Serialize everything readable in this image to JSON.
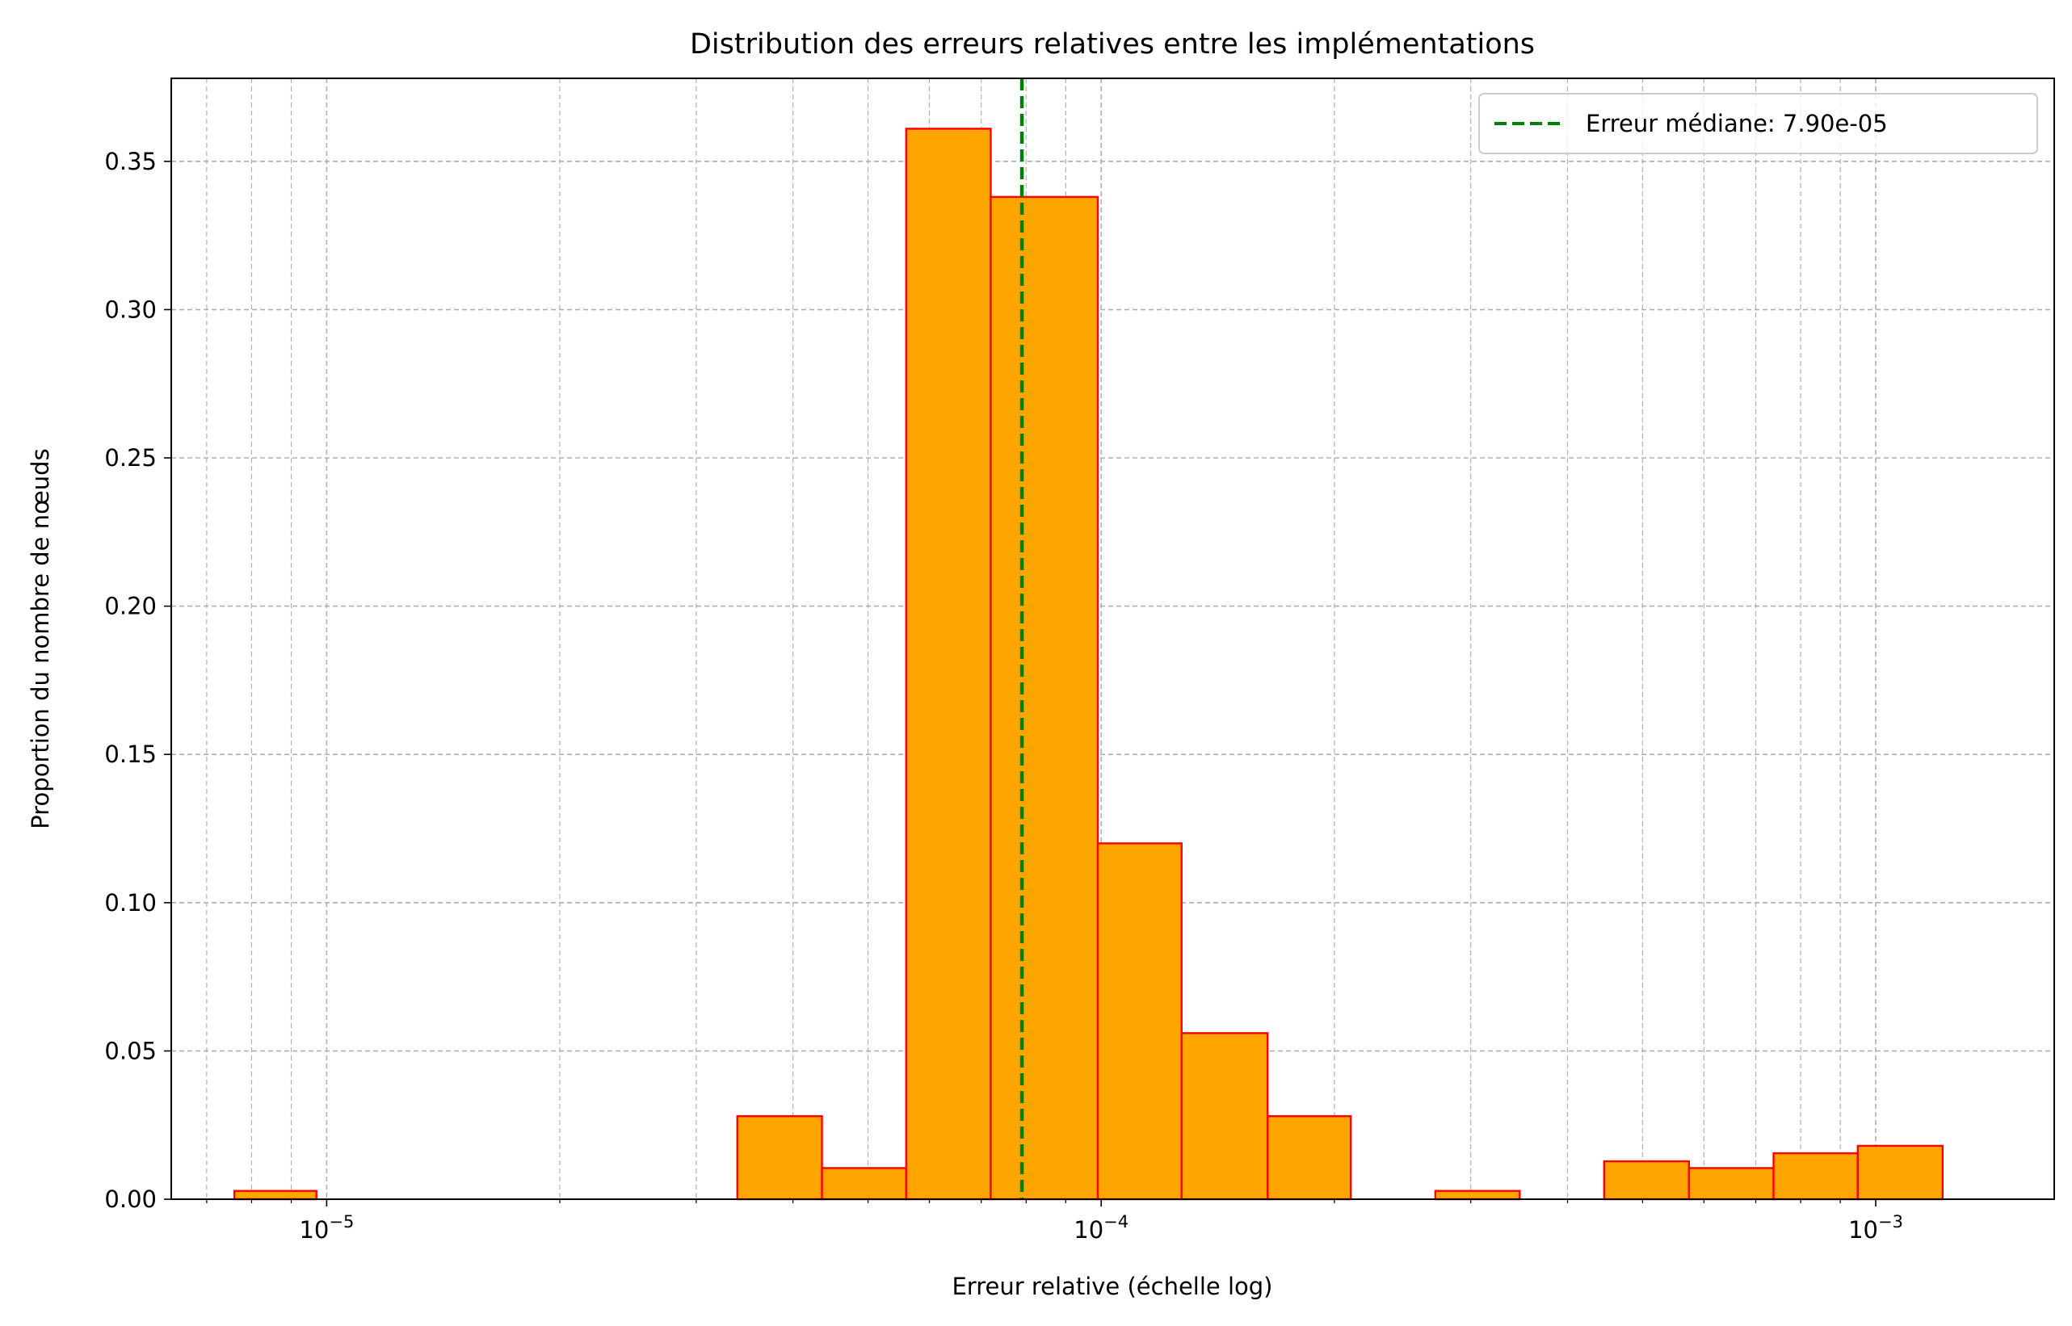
{
  "chart_data": {
    "type": "bar",
    "title": "Distribution des erreurs relatives entre les implémentations",
    "xlabel": "Erreur relative (échelle log)",
    "ylabel": "Proportion du nombre de nœuds",
    "x_scale": "log",
    "xlim": [
      6.3e-06,
      0.0017
    ],
    "ylim": [
      0,
      0.378
    ],
    "grid": true,
    "grid_minor_x": true,
    "legend_position": "top-right",
    "colors": {
      "bar_fill": "#FFA500",
      "bar_edge": "#FF0000",
      "median_line": "#008000",
      "grid": "#b0b0b0"
    },
    "x_tick_labels": [
      {
        "value": 1e-05,
        "base": "10",
        "exp": "−5"
      },
      {
        "value": 0.0001,
        "base": "10",
        "exp": "−4"
      },
      {
        "value": 0.001,
        "base": "10",
        "exp": "−3"
      }
    ],
    "y_ticks": [
      0.0,
      0.05,
      0.1,
      0.15,
      0.2,
      0.25,
      0.3,
      0.35
    ],
    "y_tick_labels": [
      "0.00",
      "0.05",
      "0.10",
      "0.15",
      "0.20",
      "0.25",
      "0.30",
      "0.35"
    ],
    "bins": [
      {
        "x0": 7.6e-06,
        "x1": 9.7e-06,
        "value": 0.0028
      },
      {
        "x0": 9.7e-06,
        "x1": 1.25e-05,
        "value": 0.0
      },
      {
        "x0": 1.25e-05,
        "x1": 1.6e-05,
        "value": 0.0
      },
      {
        "x0": 1.6e-05,
        "x1": 2.06e-05,
        "value": 0.0
      },
      {
        "x0": 2.06e-05,
        "x1": 2.64e-05,
        "value": 0.0
      },
      {
        "x0": 2.64e-05,
        "x1": 3.39e-05,
        "value": 0.0
      },
      {
        "x0": 3.39e-05,
        "x1": 4.36e-05,
        "value": 0.028
      },
      {
        "x0": 4.36e-05,
        "x1": 5.6e-05,
        "value": 0.0105
      },
      {
        "x0": 5.6e-05,
        "x1": 7.2e-05,
        "value": 0.361
      },
      {
        "x0": 7.2e-05,
        "x1": 9.9e-05,
        "value": 0.338
      },
      {
        "x0": 9.9e-05,
        "x1": 0.000127,
        "value": 0.12
      },
      {
        "x0": 0.000127,
        "x1": 0.000164,
        "value": 0.056
      },
      {
        "x0": 0.000164,
        "x1": 0.00021,
        "value": 0.028
      },
      {
        "x0": 0.00021,
        "x1": 0.00027,
        "value": 0.0
      },
      {
        "x0": 0.00027,
        "x1": 0.000347,
        "value": 0.0028
      },
      {
        "x0": 0.000347,
        "x1": 0.000446,
        "value": 0.0
      },
      {
        "x0": 0.000446,
        "x1": 0.000574,
        "value": 0.0128
      },
      {
        "x0": 0.000574,
        "x1": 0.000738,
        "value": 0.0105
      },
      {
        "x0": 0.000738,
        "x1": 0.000948,
        "value": 0.0155
      },
      {
        "x0": 0.000948,
        "x1": 0.00122,
        "value": 0.018
      }
    ],
    "median": {
      "value": 7.9e-05,
      "label": "Erreur médiane: 7.90e-05"
    }
  }
}
